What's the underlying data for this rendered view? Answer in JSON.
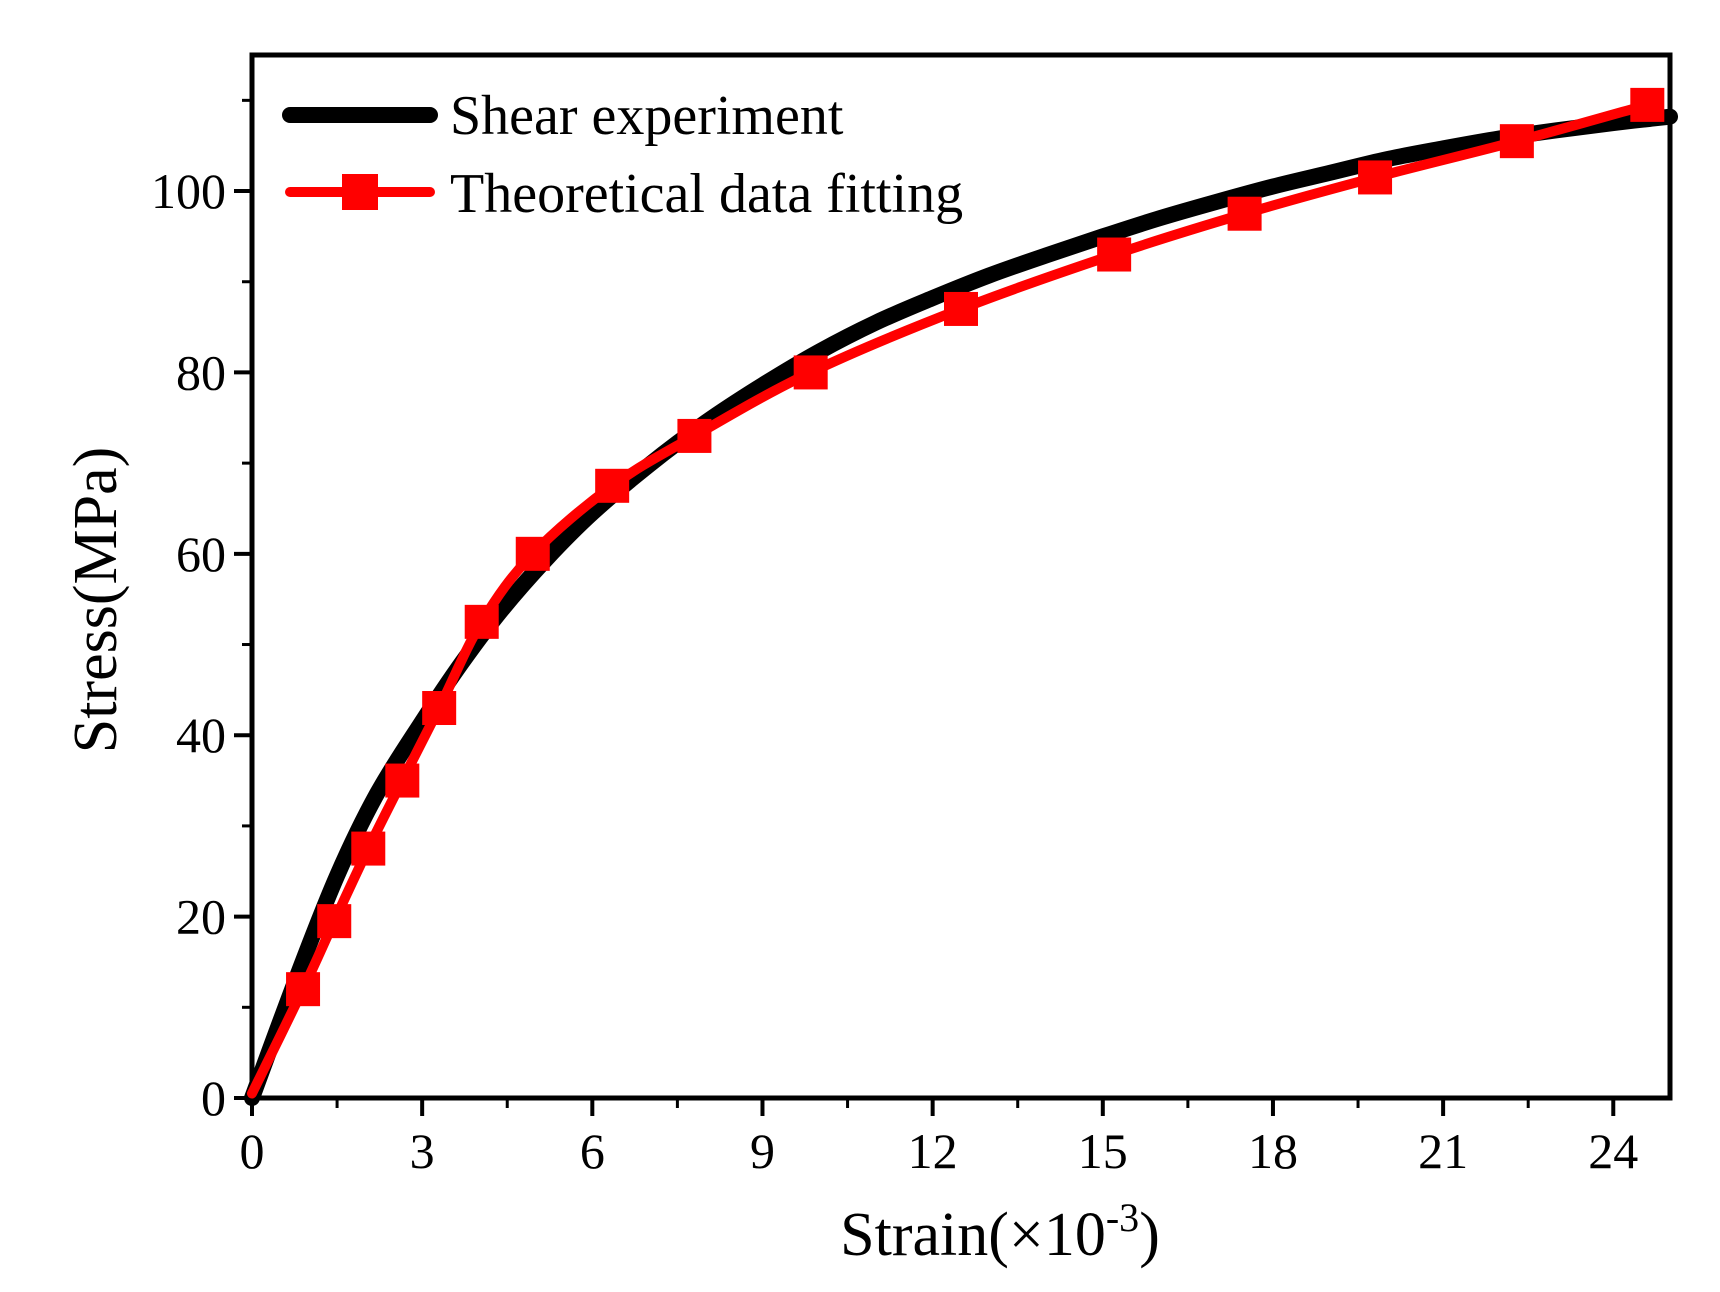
{
  "chart_data": {
    "type": "line",
    "xlabel": "Strain(×10",
    "xlabel_exponent": "-3",
    "xlabel_close": ")",
    "ylabel": "Stress(MPa)",
    "xlim": [
      0,
      25
    ],
    "ylim": [
      0,
      115
    ],
    "x_ticks": [
      0,
      3,
      6,
      9,
      12,
      15,
      18,
      21,
      24
    ],
    "x_tick_labels": [
      "0",
      "3",
      "6",
      "9",
      "12",
      "15",
      "18",
      "21",
      "24"
    ],
    "y_ticks": [
      0,
      20,
      40,
      60,
      80,
      100
    ],
    "y_tick_labels": [
      "0",
      "20",
      "40",
      "60",
      "80",
      "100"
    ],
    "legend_position": "top-left",
    "series": [
      {
        "name": "Shear experiment",
        "color": "#000000",
        "marker": "none",
        "x": [
          0,
          0.8,
          1.5,
          2.2,
          3.0,
          3.7,
          4.4,
          5.2,
          6.0,
          7.0,
          8.0,
          9.0,
          10.0,
          11.0,
          12.0,
          13.0,
          14.0,
          15.0,
          16.0,
          17.0,
          18.0,
          19.0,
          20.0,
          21.0,
          22.0,
          23.0,
          24.0,
          25.0
        ],
        "y": [
          0,
          13.5,
          24.5,
          33.5,
          41.5,
          48.0,
          53.8,
          59.5,
          64.5,
          69.8,
          74.5,
          78.6,
          82.3,
          85.5,
          88.2,
          90.7,
          92.9,
          95.0,
          97.0,
          98.8,
          100.5,
          102.0,
          103.5,
          104.7,
          105.8,
          106.7,
          107.5,
          108.2
        ]
      },
      {
        "name": "Theoretical data fitting",
        "color": "#ff0000",
        "marker": "square",
        "x": [
          0,
          0.9,
          1.45,
          2.05,
          2.65,
          3.3,
          4.05,
          4.95,
          6.35,
          7.8,
          9.85,
          12.5,
          15.2,
          17.5,
          19.8,
          22.3,
          24.6
        ],
        "y": [
          0.5,
          12,
          19.5,
          27.5,
          35,
          43,
          52.5,
          60,
          67.5,
          73,
          80,
          87,
          93,
          97.5,
          101.5,
          105.5,
          109.5
        ]
      }
    ]
  }
}
